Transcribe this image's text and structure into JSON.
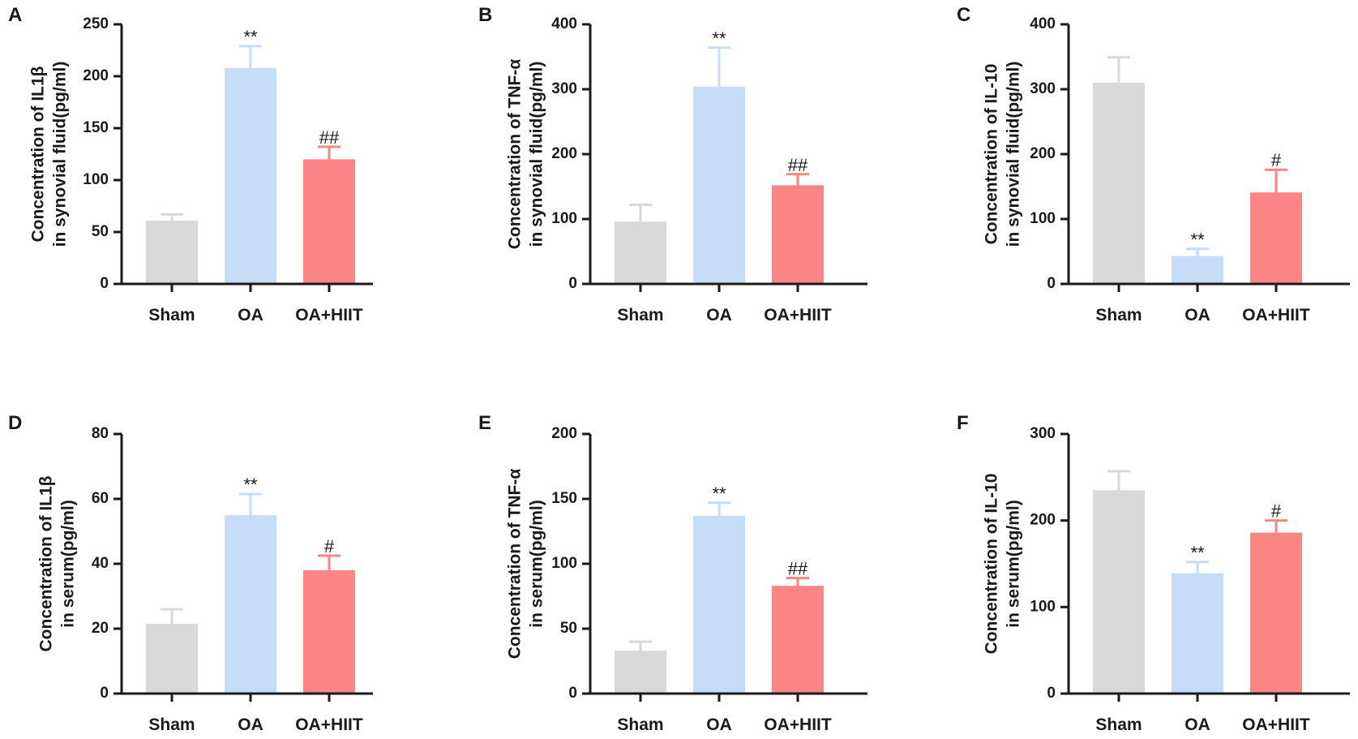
{
  "colors": {
    "Sham": "#d9d9d9",
    "OA": "#c6dcf7",
    "OA+HIIT": "#fb8585",
    "axis": "#1a1a1a"
  },
  "chart_data": [
    {
      "panel": "A",
      "type": "bar",
      "categories": [
        "Sham",
        "OA",
        "OA+HIIT"
      ],
      "values": [
        61,
        208,
        120
      ],
      "errors": [
        6,
        21,
        12
      ],
      "significance": [
        "",
        "**",
        "##"
      ],
      "yticks": [
        0,
        50,
        100,
        150,
        200,
        250
      ],
      "ylim": [
        0,
        250
      ],
      "ylabel_lines": [
        "Concentration of IL1β",
        "in synovial fluid(pg/ml)"
      ]
    },
    {
      "panel": "B",
      "type": "bar",
      "categories": [
        "Sham",
        "OA",
        "OA+HIIT"
      ],
      "values": [
        96,
        304,
        152
      ],
      "errors": [
        26,
        60,
        17
      ],
      "significance": [
        "",
        "**",
        "##"
      ],
      "yticks": [
        0,
        100,
        200,
        300,
        400
      ],
      "ylim": [
        0,
        400
      ],
      "ylabel_lines": [
        "Concentration of TNF-α",
        "in synovial fluid(pg/ml)"
      ]
    },
    {
      "panel": "C",
      "type": "bar",
      "categories": [
        "Sham",
        "OA",
        "OA+HIIT"
      ],
      "values": [
        310,
        43,
        141
      ],
      "errors": [
        39,
        11,
        35
      ],
      "significance": [
        "",
        "**",
        "#"
      ],
      "yticks": [
        0,
        100,
        200,
        300,
        400
      ],
      "ylim": [
        0,
        400
      ],
      "ylabel_lines": [
        "Concentration of IL-10",
        "in synovial fluid(pg/ml)"
      ]
    },
    {
      "panel": "D",
      "type": "bar",
      "categories": [
        "Sham",
        "OA",
        "OA+HIIT"
      ],
      "values": [
        21.5,
        55,
        38
      ],
      "errors": [
        4.5,
        6.5,
        4.5
      ],
      "significance": [
        "",
        "**",
        "#"
      ],
      "yticks": [
        0,
        20,
        40,
        60,
        80
      ],
      "ylim": [
        0,
        80
      ],
      "ylabel_lines": [
        "Concentration of IL1β",
        "in serum(pg/ml)"
      ]
    },
    {
      "panel": "E",
      "type": "bar",
      "categories": [
        "Sham",
        "OA",
        "OA+HIIT"
      ],
      "values": [
        33,
        137,
        83
      ],
      "errors": [
        7,
        10,
        6
      ],
      "significance": [
        "",
        "**",
        "##"
      ],
      "yticks": [
        0,
        50,
        100,
        150,
        200
      ],
      "ylim": [
        0,
        200
      ],
      "ylabel_lines": [
        "Concentration of TNF-α",
        "in serum(pg/ml)"
      ]
    },
    {
      "panel": "F",
      "type": "bar",
      "categories": [
        "Sham",
        "OA",
        "OA+HIIT"
      ],
      "values": [
        235,
        139,
        186
      ],
      "errors": [
        22,
        13,
        14
      ],
      "significance": [
        "",
        "**",
        "#"
      ],
      "yticks": [
        0,
        100,
        200,
        300
      ],
      "ylim": [
        0,
        300
      ],
      "ylabel_lines": [
        "Concentration of IL-10",
        "in serum(pg/ml)"
      ]
    }
  ]
}
